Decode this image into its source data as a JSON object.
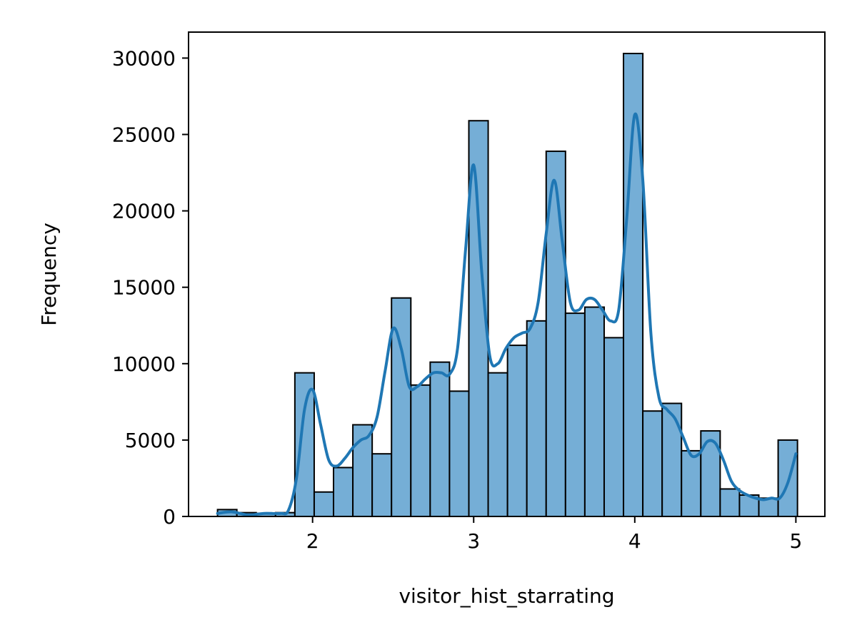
{
  "chart_data": {
    "type": "bar",
    "subtype": "histogram-with-kde",
    "xlabel": "visitor_hist_starrating",
    "ylabel": "Frequency",
    "xlim": [
      1.23,
      5.18
    ],
    "ylim": [
      0,
      31700
    ],
    "xticks": [
      2,
      3,
      4,
      5
    ],
    "yticks": [
      0,
      5000,
      10000,
      15000,
      20000,
      25000,
      30000
    ],
    "bar_color": "#75aed6",
    "line_color": "#1f77b4",
    "grid": false,
    "legend": "none",
    "bins": [
      {
        "x0": 1.41,
        "x1": 1.53,
        "value": 450
      },
      {
        "x0": 1.53,
        "x1": 1.65,
        "value": 250
      },
      {
        "x0": 1.65,
        "x1": 1.77,
        "value": 200
      },
      {
        "x0": 1.77,
        "x1": 1.89,
        "value": 250
      },
      {
        "x0": 1.89,
        "x1": 2.01,
        "value": 9400
      },
      {
        "x0": 2.01,
        "x1": 2.13,
        "value": 1600
      },
      {
        "x0": 2.13,
        "x1": 2.25,
        "value": 3200
      },
      {
        "x0": 2.25,
        "x1": 2.37,
        "value": 6000
      },
      {
        "x0": 2.37,
        "x1": 2.49,
        "value": 4100
      },
      {
        "x0": 2.49,
        "x1": 2.61,
        "value": 14300
      },
      {
        "x0": 2.61,
        "x1": 2.73,
        "value": 8600
      },
      {
        "x0": 2.73,
        "x1": 2.85,
        "value": 10100
      },
      {
        "x0": 2.85,
        "x1": 2.97,
        "value": 8200
      },
      {
        "x0": 2.97,
        "x1": 3.09,
        "value": 25900
      },
      {
        "x0": 3.09,
        "x1": 3.21,
        "value": 9400
      },
      {
        "x0": 3.21,
        "x1": 3.33,
        "value": 11200
      },
      {
        "x0": 3.33,
        "x1": 3.45,
        "value": 12800
      },
      {
        "x0": 3.45,
        "x1": 3.57,
        "value": 23900
      },
      {
        "x0": 3.57,
        "x1": 3.69,
        "value": 13300
      },
      {
        "x0": 3.69,
        "x1": 3.81,
        "value": 13700
      },
      {
        "x0": 3.81,
        "x1": 3.93,
        "value": 11700
      },
      {
        "x0": 3.93,
        "x1": 4.05,
        "value": 30300
      },
      {
        "x0": 4.05,
        "x1": 4.17,
        "value": 6900
      },
      {
        "x0": 4.17,
        "x1": 4.29,
        "value": 7400
      },
      {
        "x0": 4.29,
        "x1": 4.41,
        "value": 4300
      },
      {
        "x0": 4.41,
        "x1": 4.53,
        "value": 5600
      },
      {
        "x0": 4.53,
        "x1": 4.65,
        "value": 1800
      },
      {
        "x0": 4.65,
        "x1": 4.77,
        "value": 1400
      },
      {
        "x0": 4.77,
        "x1": 4.89,
        "value": 1200
      },
      {
        "x0": 4.89,
        "x1": 5.01,
        "value": 5000
      }
    ],
    "kde": {
      "x": [
        1.41,
        1.5,
        1.6,
        1.7,
        1.8,
        1.85,
        1.9,
        1.95,
        2.0,
        2.05,
        2.1,
        2.15,
        2.2,
        2.25,
        2.3,
        2.35,
        2.4,
        2.45,
        2.5,
        2.55,
        2.6,
        2.65,
        2.7,
        2.75,
        2.8,
        2.85,
        2.9,
        2.95,
        3.0,
        3.05,
        3.1,
        3.15,
        3.2,
        3.25,
        3.3,
        3.35,
        3.4,
        3.45,
        3.5,
        3.55,
        3.6,
        3.65,
        3.7,
        3.75,
        3.8,
        3.85,
        3.9,
        3.95,
        4.0,
        4.05,
        4.1,
        4.15,
        4.2,
        4.25,
        4.3,
        4.35,
        4.4,
        4.45,
        4.5,
        4.55,
        4.6,
        4.65,
        4.7,
        4.75,
        4.8,
        4.85,
        4.9,
        4.95,
        5.0
      ],
      "y": [
        200,
        300,
        100,
        200,
        200,
        400,
        2500,
        7000,
        8300,
        6000,
        3700,
        3300,
        3800,
        4500,
        5000,
        5300,
        6500,
        9500,
        12300,
        11000,
        8500,
        8500,
        9000,
        9400,
        9400,
        9300,
        11000,
        17500,
        23000,
        16000,
        10500,
        10000,
        11000,
        11700,
        12000,
        12300,
        14000,
        18500,
        22000,
        18000,
        14000,
        13500,
        14200,
        14200,
        13500,
        12800,
        13500,
        19500,
        26300,
        22000,
        12000,
        7800,
        7000,
        6400,
        5200,
        4000,
        4100,
        4900,
        4800,
        3700,
        2300,
        1700,
        1400,
        1200,
        1100,
        1200,
        1200,
        2200,
        4100
      ]
    }
  }
}
